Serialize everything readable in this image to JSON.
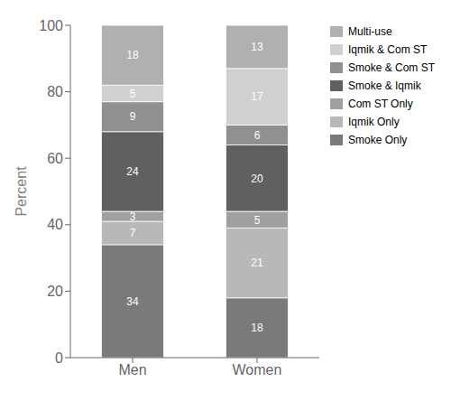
{
  "chart_data": {
    "type": "bar",
    "stacked": true,
    "data_labels": true,
    "grid": false,
    "legend": "right",
    "categories": [
      "Men",
      "Women"
    ],
    "ylabel": "Percent",
    "ylim": [
      0,
      100
    ],
    "yticks": [
      0,
      20,
      40,
      60,
      80,
      100
    ],
    "series": [
      {
        "name": "Smoke Only",
        "color": "#7a7a7a",
        "values": [
          34,
          18
        ]
      },
      {
        "name": "Iqmik Only",
        "color": "#b8b8b8",
        "values": [
          7,
          21
        ]
      },
      {
        "name": "Com ST Only",
        "color": "#a0a0a0",
        "values": [
          3,
          5
        ]
      },
      {
        "name": "Smoke & Iqmik",
        "color": "#606060",
        "values": [
          24,
          20
        ]
      },
      {
        "name": "Smoke & Com ST",
        "color": "#909090",
        "values": [
          9,
          6
        ]
      },
      {
        "name": "Iqmik & Com ST",
        "color": "#d0d0d0",
        "values": [
          5,
          17
        ]
      },
      {
        "name": "Multi-use",
        "color": "#b0b0b0",
        "values": [
          18,
          13
        ]
      }
    ]
  }
}
